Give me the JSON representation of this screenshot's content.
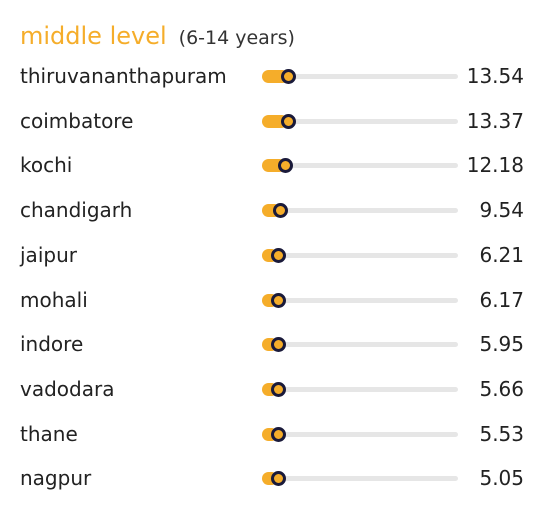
{
  "chart_data": {
    "type": "bar",
    "title": "middle level",
    "subtitle": "(6-14 years)",
    "categories": [
      "thiruvananthapuram",
      "coimbatore",
      "kochi",
      "chandigarh",
      "jaipur",
      "mohali",
      "indore",
      "vadodara",
      "thane",
      "nagpur"
    ],
    "values": [
      13.54,
      13.37,
      12.18,
      9.54,
      6.21,
      6.17,
      5.95,
      5.66,
      5.53,
      5.05
    ],
    "value_labels": [
      "13.54",
      "13.37",
      "12.18",
      "9.54",
      "6.21",
      "6.17",
      "5.95",
      "5.66",
      "5.53",
      "5.05"
    ],
    "orientation": "horizontal",
    "xlim": [
      0,
      100
    ],
    "grid": false,
    "colors": {
      "fill": "#f5ad2a",
      "track": "#e6e6e6",
      "marker_border": "#1a1a3a",
      "title": "#f5ad2a"
    }
  }
}
